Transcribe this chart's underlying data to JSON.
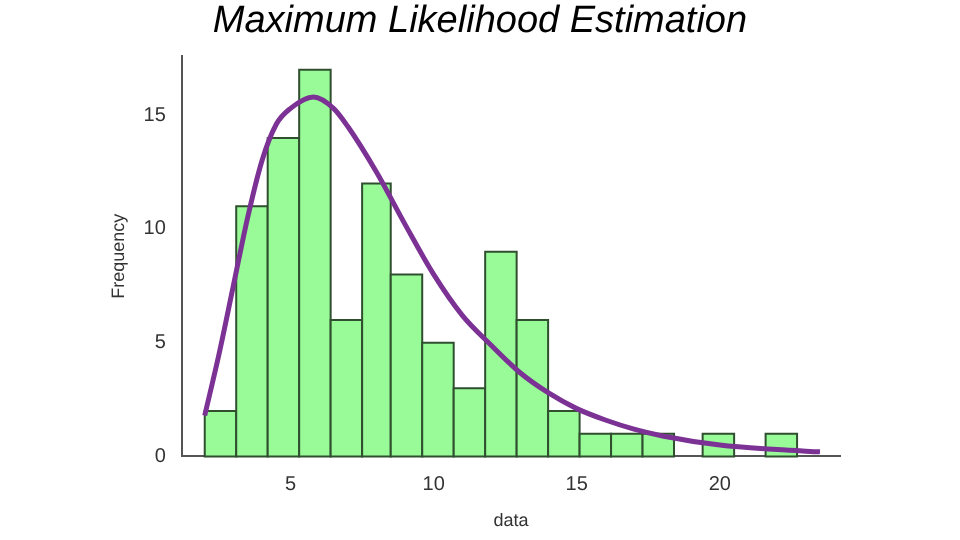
{
  "chart_data": {
    "type": "histogram",
    "title": "Maximum Likelihood Estimation",
    "xlabel": "data",
    "ylabel": "Frequency",
    "bins": [
      2.0,
      3.1,
      4.2,
      5.3,
      6.4,
      7.5,
      8.5,
      9.6,
      10.7,
      11.8,
      12.9,
      14.0,
      15.1,
      16.2,
      17.3,
      18.4,
      19.4,
      20.5,
      21.6,
      22.7
    ],
    "values": [
      2,
      11,
      14,
      17,
      6,
      12,
      8,
      5,
      3,
      9,
      6,
      2,
      1,
      1,
      1,
      0,
      1,
      0,
      1
    ],
    "color": "#98fb98",
    "series": [
      {
        "type": "line",
        "color": "#7b3294",
        "x": [
          2.0,
          2.5,
          3.0,
          3.5,
          4.0,
          4.5,
          5.0,
          5.8,
          6.5,
          7.0,
          8.0,
          9.0,
          10.0,
          11.0,
          12.0,
          13.0,
          14.0,
          15.0,
          16.0,
          17.0,
          18.0,
          20.0,
          22.0,
          23.5
        ],
        "values": [
          1.8,
          4.5,
          7.5,
          10.5,
          13.0,
          14.6,
          15.3,
          15.8,
          15.3,
          14.5,
          12.5,
          10.2,
          8.0,
          6.2,
          4.9,
          3.7,
          2.8,
          2.1,
          1.6,
          1.2,
          0.9,
          0.5,
          0.3,
          0.2
        ]
      }
    ],
    "xlim": [
      1.2,
      24.2
    ],
    "xticks": [
      5,
      10,
      15,
      20
    ],
    "ylim": [
      0,
      17.6
    ],
    "yticks": [
      0,
      5,
      10,
      15
    ],
    "grid": false,
    "legend": false
  }
}
